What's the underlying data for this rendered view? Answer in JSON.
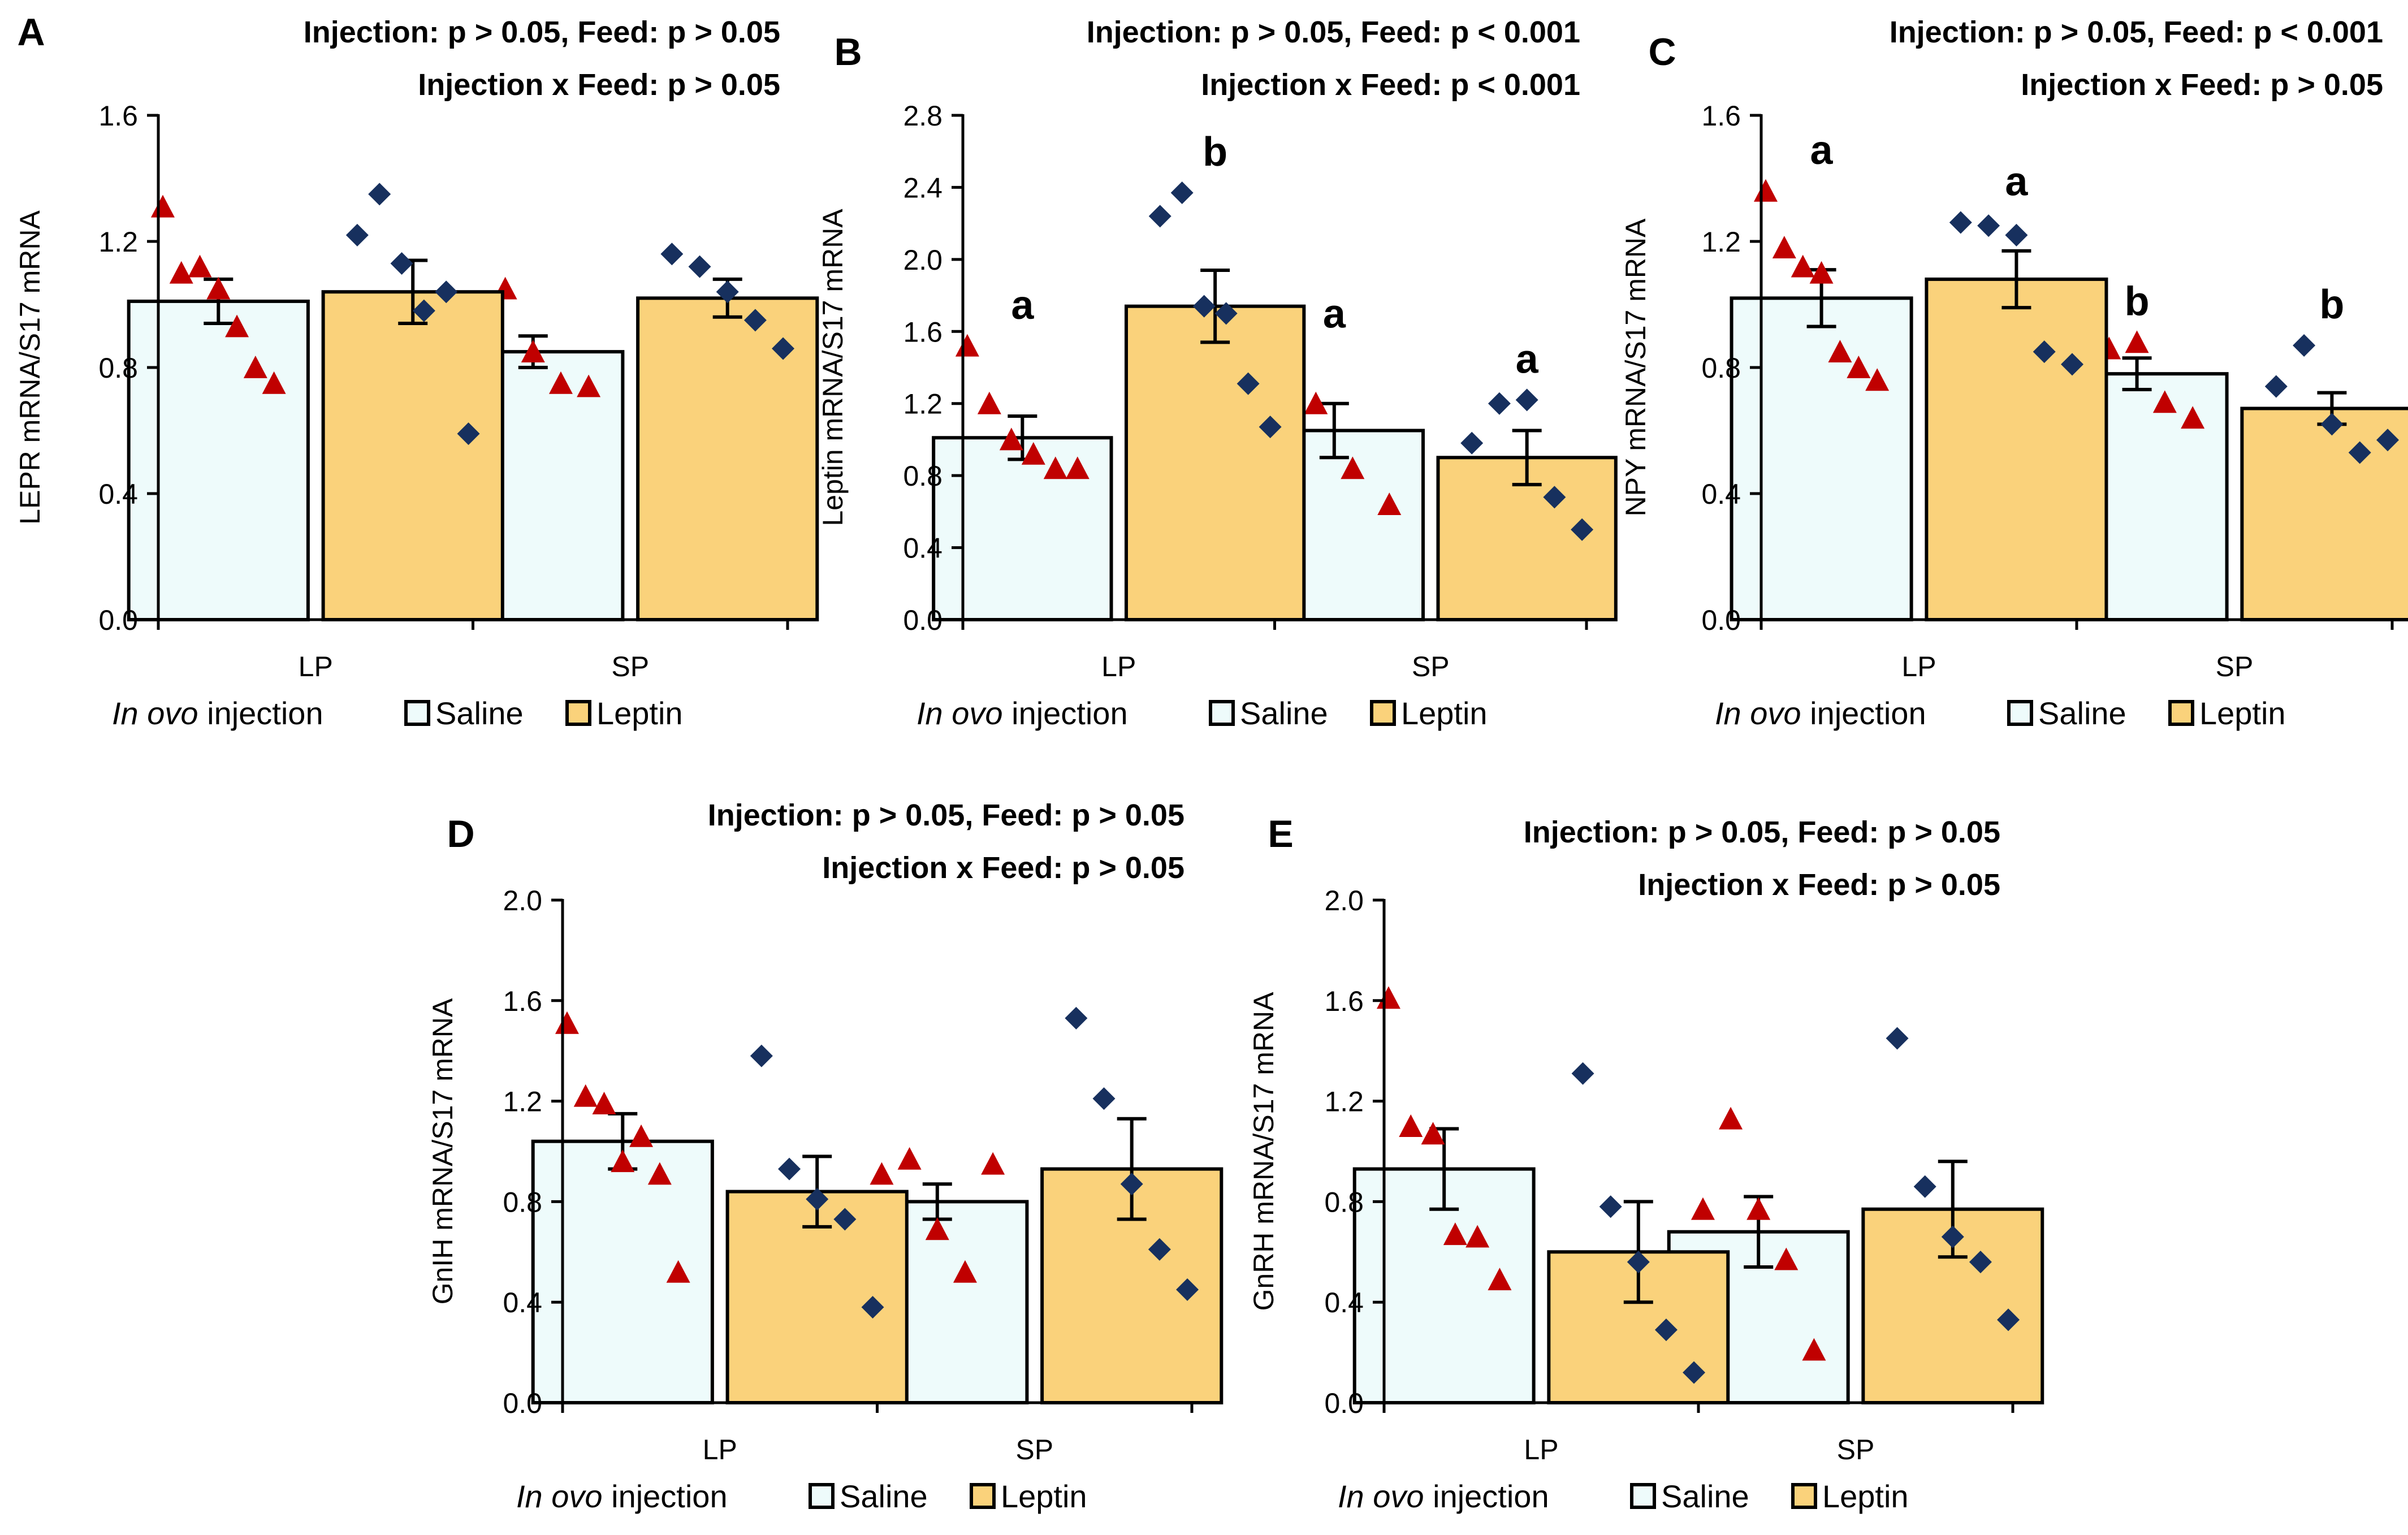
{
  "colors": {
    "saline": "#EEFBFB",
    "leptin": "#FAD27B",
    "triangle": "#C00000",
    "diamond": "#17305E",
    "axis": "#000000"
  },
  "legend": {
    "prefix_italic": "In ovo",
    "prefix_rest": " injection",
    "saline": "Saline",
    "leptin": "Leptin"
  },
  "chart_data": [
    {
      "panel": "A",
      "type": "bar",
      "title": "A",
      "stats_line1": "Injection: p > 0.05, Feed: p > 0.05",
      "stats_line2": "Injection x Feed: p > 0.05",
      "ylabel": "LEPR mRNA/S17 mRNA",
      "ylim": [
        0,
        1.6
      ],
      "yticks": [
        "0.0",
        "0.4",
        "0.8",
        "1.2",
        "1.6"
      ],
      "ytick_values": [
        0,
        0.4,
        0.8,
        1.2,
        1.6
      ],
      "categories": [
        "LP",
        "SP"
      ],
      "series": [
        {
          "name": "Saline",
          "values": [
            1.01,
            0.85
          ],
          "sem": [
            0.07,
            0.05
          ],
          "letters": [
            "",
            ""
          ],
          "points": [
            [
              1.31,
              1.1,
              1.12,
              1.05,
              0.93,
              0.8,
              0.75
            ],
            [
              0.92,
              1.05,
              0.85,
              0.75,
              0.74
            ]
          ]
        },
        {
          "name": "Leptin",
          "values": [
            1.04,
            1.02
          ],
          "sem": [
            0.1,
            0.06
          ],
          "letters": [
            "",
            ""
          ],
          "points": [
            [
              1.22,
              1.35,
              1.13,
              0.98,
              1.04,
              0.59
            ],
            [
              1.16,
              1.12,
              1.04,
              0.95,
              0.86
            ]
          ]
        }
      ]
    },
    {
      "panel": "B",
      "type": "bar",
      "title": "B",
      "stats_line1": "Injection: p > 0.05, Feed: p < 0.001",
      "stats_line2": "Injection x Feed: p < 0.001",
      "ylabel": "Leptin mRNA/S17 mRNA",
      "ylim": [
        0,
        2.8
      ],
      "yticks": [
        "0.0",
        "0.4",
        "0.8",
        "1.2",
        "1.6",
        "2.0",
        "2.4",
        "2.8"
      ],
      "ytick_values": [
        0,
        0.4,
        0.8,
        1.2,
        1.6,
        2.0,
        2.4,
        2.8
      ],
      "categories": [
        "LP",
        "SP"
      ],
      "series": [
        {
          "name": "Saline",
          "values": [
            1.01,
            1.05
          ],
          "sem": [
            0.12,
            0.15
          ],
          "letters": [
            "a",
            "a"
          ],
          "points": [
            [
              1.52,
              1.2,
              1.0,
              0.92,
              0.84,
              0.84
            ],
            [
              1.47,
              1.2,
              0.84,
              0.64
            ]
          ]
        },
        {
          "name": "Leptin",
          "values": [
            1.74,
            0.9
          ],
          "sem": [
            0.2,
            0.15
          ],
          "letters": [
            "b",
            "a"
          ],
          "points": [
            [
              2.24,
              2.37,
              1.74,
              1.7,
              1.31,
              1.07
            ],
            [
              0.98,
              1.2,
              1.22,
              0.68,
              0.5
            ]
          ]
        }
      ]
    },
    {
      "panel": "C",
      "type": "bar",
      "title": "C",
      "stats_line1": "Injection: p > 0.05, Feed: p < 0.001",
      "stats_line2": "Injection x Feed: p > 0.05",
      "ylabel": "NPY mRNA/S17 mRNA",
      "ylim": [
        0,
        1.6
      ],
      "yticks": [
        "0.0",
        "0.4",
        "0.8",
        "1.2",
        "1.6"
      ],
      "ytick_values": [
        0,
        0.4,
        0.8,
        1.2,
        1.6
      ],
      "categories": [
        "LP",
        "SP"
      ],
      "series": [
        {
          "name": "Saline",
          "values": [
            1.02,
            0.78
          ],
          "sem": [
            0.09,
            0.05
          ],
          "letters": [
            "a",
            "b"
          ],
          "points": [
            [
              1.36,
              1.18,
              1.12,
              1.1,
              0.85,
              0.8,
              0.76
            ],
            [
              0.85,
              0.86,
              0.88,
              0.69,
              0.64
            ]
          ]
        },
        {
          "name": "Leptin",
          "values": [
            1.08,
            0.67
          ],
          "sem": [
            0.09,
            0.05
          ],
          "letters": [
            "a",
            "b"
          ],
          "points": [
            [
              1.26,
              1.25,
              1.22,
              0.85,
              0.81
            ],
            [
              0.74,
              0.87,
              0.62,
              0.53,
              0.57
            ]
          ]
        }
      ]
    },
    {
      "panel": "D",
      "type": "bar",
      "title": "D",
      "stats_line1": "Injection: p > 0.05, Feed: p > 0.05",
      "stats_line2": "Injection x Feed: p > 0.05",
      "ylabel": "GnIH mRNA/S17 mRNA",
      "ylim": [
        0,
        2.0
      ],
      "yticks": [
        "0.0",
        "0.4",
        "0.8",
        "1.2",
        "1.6",
        "2.0"
      ],
      "ytick_values": [
        0,
        0.4,
        0.8,
        1.2,
        1.6,
        2.0
      ],
      "categories": [
        "LP",
        "SP"
      ],
      "series": [
        {
          "name": "Saline",
          "values": [
            1.04,
            0.8
          ],
          "sem": [
            0.11,
            0.07
          ],
          "letters": [
            "",
            ""
          ],
          "points": [
            [
              1.51,
              1.22,
              1.19,
              0.96,
              1.06,
              0.91,
              0.52
            ],
            [
              0.91,
              0.97,
              0.69,
              0.52,
              0.95
            ]
          ]
        },
        {
          "name": "Leptin",
          "values": [
            0.84,
            0.93
          ],
          "sem": [
            0.14,
            0.2
          ],
          "letters": [
            "",
            ""
          ],
          "points": [
            [
              1.38,
              0.93,
              0.81,
              0.73,
              0.38
            ],
            [
              1.53,
              1.21,
              0.87,
              0.61,
              0.45
            ]
          ]
        }
      ]
    },
    {
      "panel": "E",
      "type": "bar",
      "title": "E",
      "stats_line1": "Injection: p > 0.05, Feed: p > 0.05",
      "stats_line2": "Injection x Feed: p > 0.05",
      "ylabel": "GnRH mRNA/S17 mRNA",
      "ylim": [
        0,
        2.0
      ],
      "yticks": [
        "0.0",
        "0.4",
        "0.8",
        "1.2",
        "1.6",
        "2.0"
      ],
      "ytick_values": [
        0,
        0.4,
        0.8,
        1.2,
        1.6,
        2.0
      ],
      "categories": [
        "LP",
        "SP"
      ],
      "series": [
        {
          "name": "Saline",
          "values": [
            0.93,
            0.68
          ],
          "sem": [
            0.16,
            0.14
          ],
          "letters": [
            "",
            ""
          ],
          "points": [
            [
              1.61,
              1.1,
              1.07,
              0.67,
              0.66,
              0.49
            ],
            [
              0.77,
              1.13,
              0.77,
              0.57,
              0.21
            ]
          ]
        },
        {
          "name": "Leptin",
          "values": [
            0.6,
            0.77
          ],
          "sem": [
            0.2,
            0.19
          ],
          "letters": [
            "",
            ""
          ],
          "points": [
            [
              1.31,
              0.78,
              0.56,
              0.29,
              0.12
            ],
            [
              1.45,
              0.86,
              0.66,
              0.56,
              0.33
            ]
          ]
        }
      ]
    }
  ]
}
